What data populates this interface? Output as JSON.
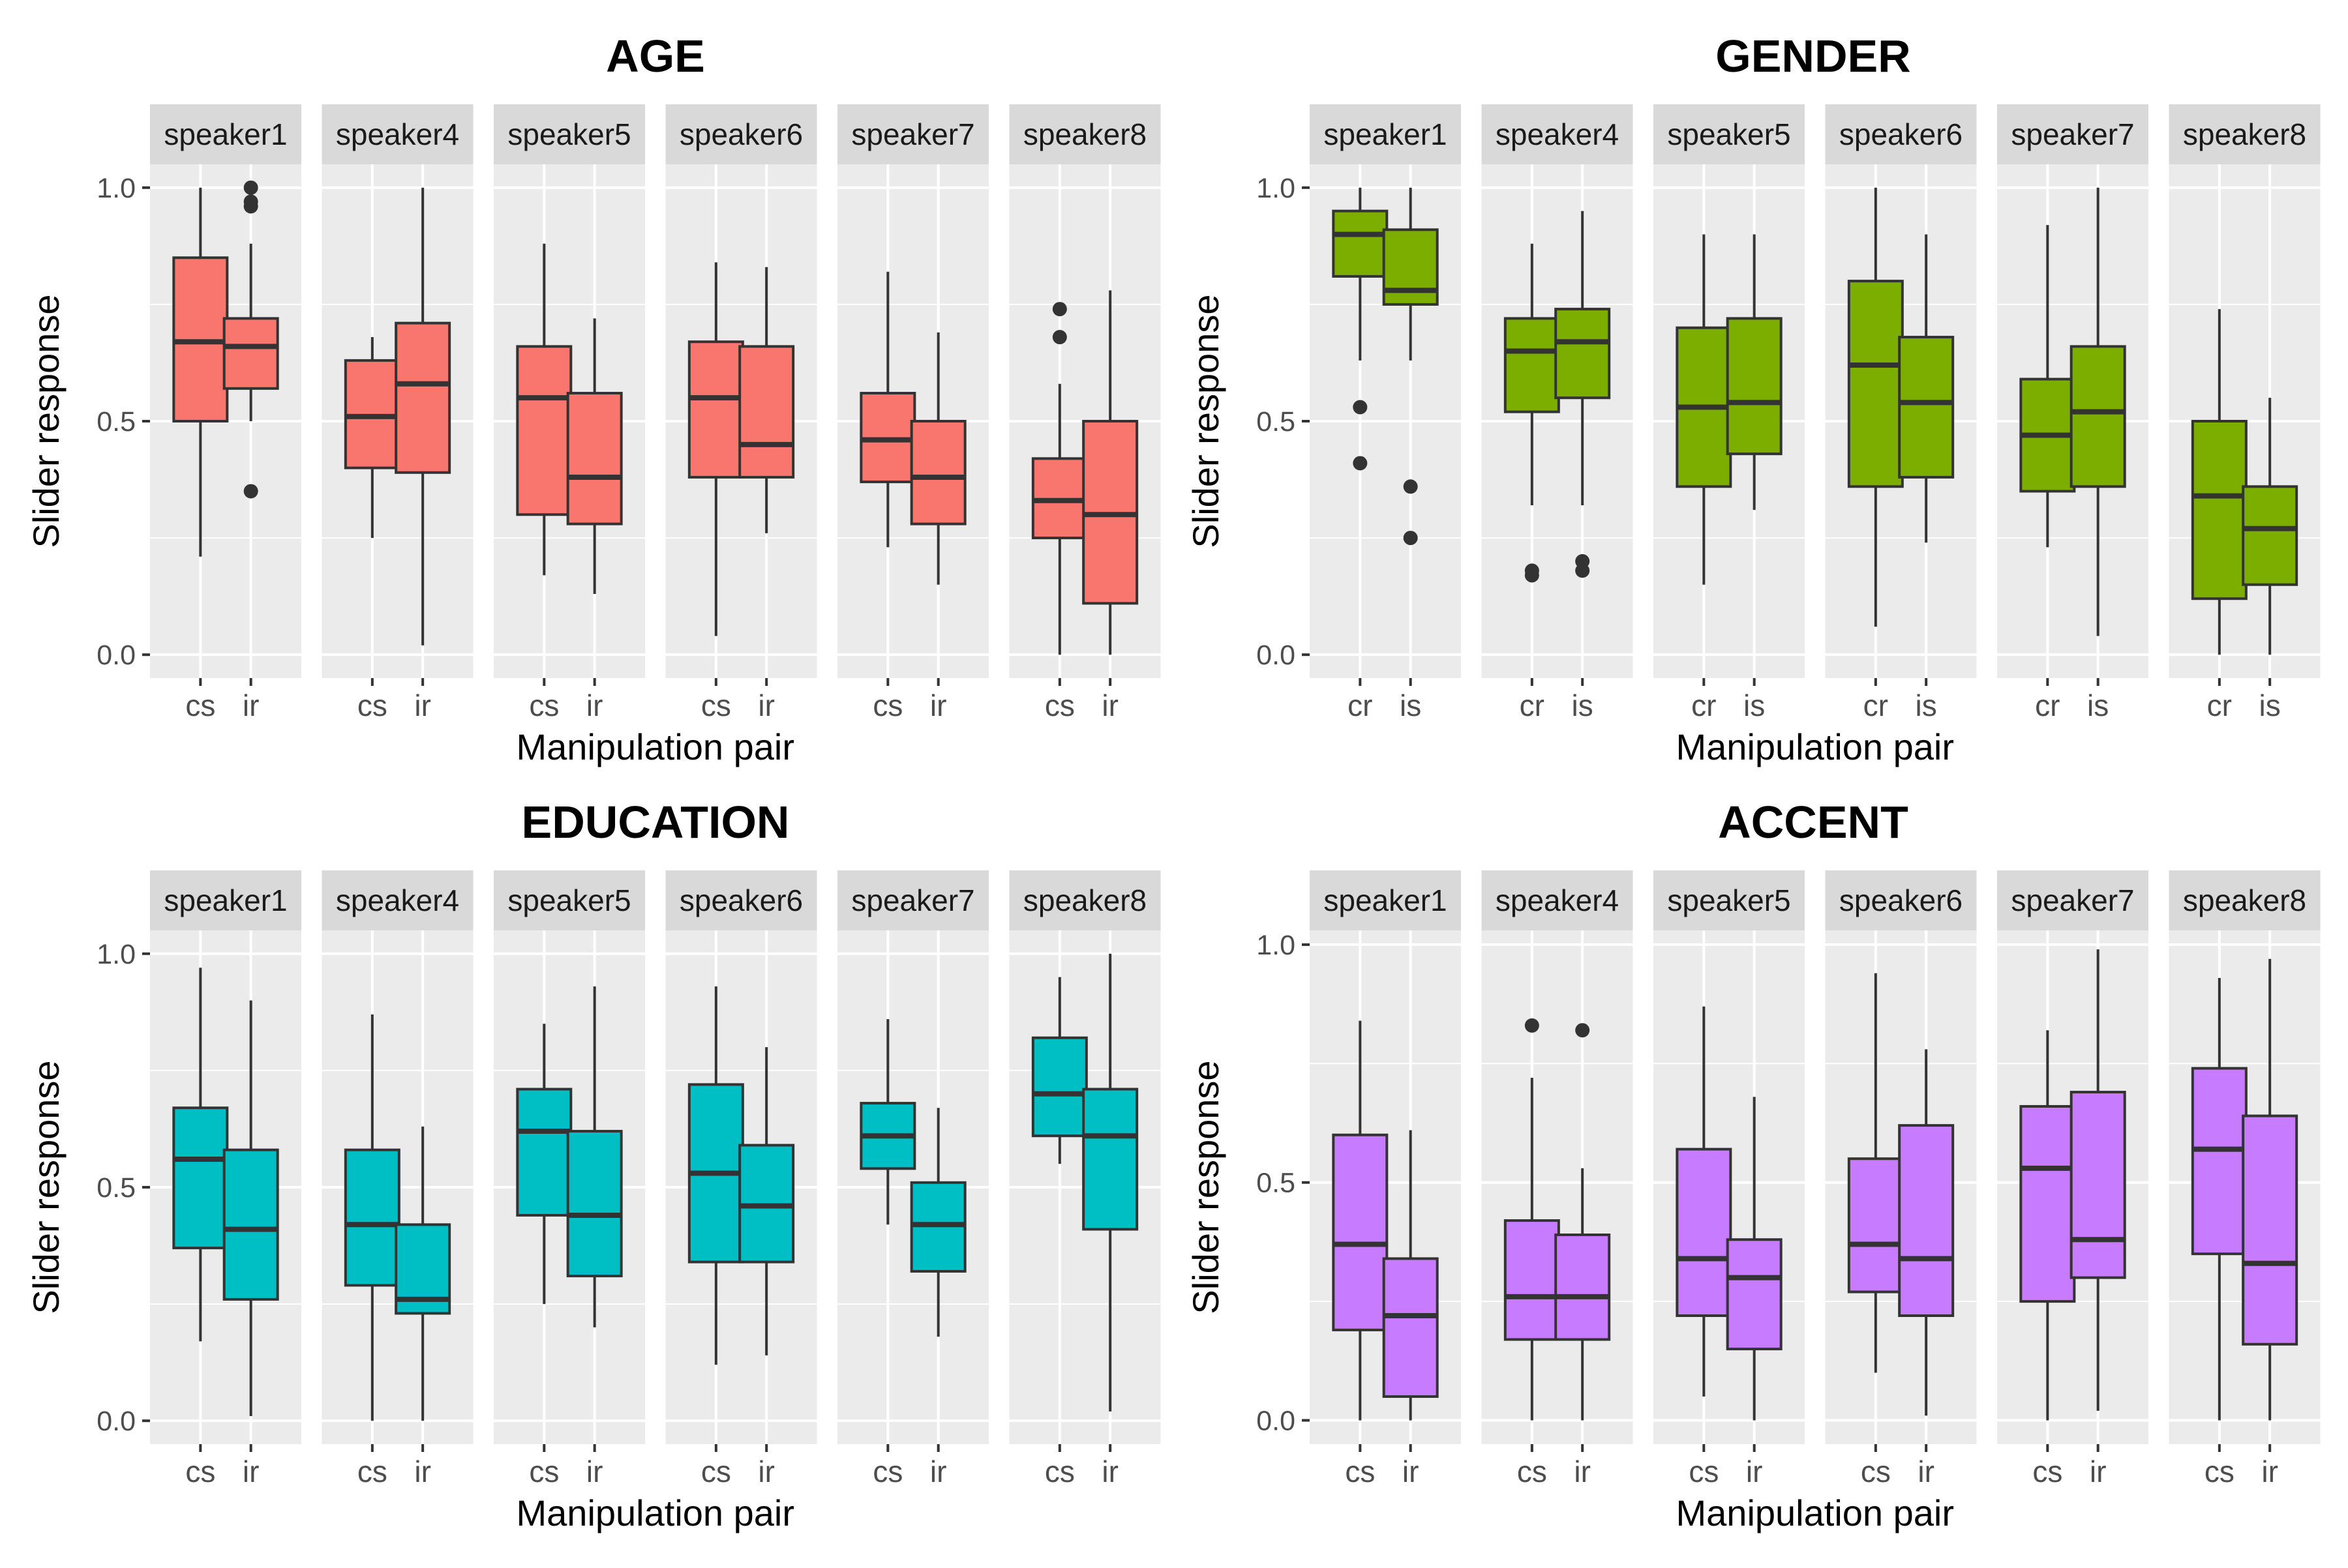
{
  "chart_data": [
    {
      "type": "boxplot",
      "title": "AGE",
      "xlabel": "Manipulation pair",
      "ylabel": "Slider response",
      "ylim": [
        -0.05,
        1.05
      ],
      "yticks": [
        0.0,
        0.5,
        1.0
      ],
      "ytick_labels": [
        "0.0",
        "0.5",
        "1.0"
      ],
      "color": "#F8766D",
      "categories": [
        "cs",
        "ir"
      ],
      "facets": [
        {
          "label": "speaker1",
          "boxes": [
            {
              "x": "cs",
              "min": 0.21,
              "q1": 0.5,
              "median": 0.67,
              "q3": 0.85,
              "max": 1.0,
              "outliers": []
            },
            {
              "x": "ir",
              "min": 0.5,
              "q1": 0.57,
              "median": 0.66,
              "q3": 0.72,
              "max": 0.88,
              "outliers": [
                1.0,
                0.97,
                0.96,
                0.35
              ]
            }
          ]
        },
        {
          "label": "speaker4",
          "boxes": [
            {
              "x": "cs",
              "min": 0.25,
              "q1": 0.4,
              "median": 0.51,
              "q3": 0.63,
              "max": 0.68,
              "outliers": []
            },
            {
              "x": "ir",
              "min": 0.02,
              "q1": 0.39,
              "median": 0.58,
              "q3": 0.71,
              "max": 1.0,
              "outliers": []
            }
          ]
        },
        {
          "label": "speaker5",
          "boxes": [
            {
              "x": "cs",
              "min": 0.17,
              "q1": 0.3,
              "median": 0.55,
              "q3": 0.66,
              "max": 0.88,
              "outliers": []
            },
            {
              "x": "ir",
              "min": 0.13,
              "q1": 0.28,
              "median": 0.38,
              "q3": 0.56,
              "max": 0.72,
              "outliers": []
            }
          ]
        },
        {
          "label": "speaker6",
          "boxes": [
            {
              "x": "cs",
              "min": 0.04,
              "q1": 0.38,
              "median": 0.55,
              "q3": 0.67,
              "max": 0.84,
              "outliers": []
            },
            {
              "x": "ir",
              "min": 0.26,
              "q1": 0.38,
              "median": 0.45,
              "q3": 0.66,
              "max": 0.83,
              "outliers": []
            }
          ]
        },
        {
          "label": "speaker7",
          "boxes": [
            {
              "x": "cs",
              "min": 0.23,
              "q1": 0.37,
              "median": 0.46,
              "q3": 0.56,
              "max": 0.82,
              "outliers": []
            },
            {
              "x": "ir",
              "min": 0.15,
              "q1": 0.28,
              "median": 0.38,
              "q3": 0.5,
              "max": 0.69,
              "outliers": []
            }
          ]
        },
        {
          "label": "speaker8",
          "boxes": [
            {
              "x": "cs",
              "min": 0.0,
              "q1": 0.25,
              "median": 0.33,
              "q3": 0.42,
              "max": 0.58,
              "outliers": [
                0.74,
                0.68
              ]
            },
            {
              "x": "ir",
              "min": 0.0,
              "q1": 0.11,
              "median": 0.3,
              "q3": 0.5,
              "max": 0.78,
              "outliers": []
            }
          ]
        }
      ]
    },
    {
      "type": "boxplot",
      "title": "GENDER",
      "xlabel": "Manipulation pair",
      "ylabel": "Slider response",
      "ylim": [
        -0.05,
        1.05
      ],
      "yticks": [
        0.0,
        0.5,
        1.0
      ],
      "ytick_labels": [
        "0.0",
        "0.5",
        "1.0"
      ],
      "color": "#7CAE00",
      "categories": [
        "cr",
        "is"
      ],
      "facets": [
        {
          "label": "speaker1",
          "boxes": [
            {
              "x": "cr",
              "min": 0.63,
              "q1": 0.81,
              "median": 0.9,
              "q3": 0.95,
              "max": 1.0,
              "outliers": [
                0.53,
                0.41
              ]
            },
            {
              "x": "is",
              "min": 0.63,
              "q1": 0.75,
              "median": 0.78,
              "q3": 0.91,
              "max": 1.0,
              "outliers": [
                0.36,
                0.25
              ]
            }
          ]
        },
        {
          "label": "speaker4",
          "boxes": [
            {
              "x": "cr",
              "min": 0.32,
              "q1": 0.52,
              "median": 0.65,
              "q3": 0.72,
              "max": 0.88,
              "outliers": [
                0.18,
                0.17
              ]
            },
            {
              "x": "is",
              "min": 0.32,
              "q1": 0.55,
              "median": 0.67,
              "q3": 0.74,
              "max": 0.95,
              "outliers": [
                0.2,
                0.18
              ]
            }
          ]
        },
        {
          "label": "speaker5",
          "boxes": [
            {
              "x": "cr",
              "min": 0.15,
              "q1": 0.36,
              "median": 0.53,
              "q3": 0.7,
              "max": 0.9,
              "outliers": []
            },
            {
              "x": "is",
              "min": 0.31,
              "q1": 0.43,
              "median": 0.54,
              "q3": 0.72,
              "max": 0.9,
              "outliers": []
            }
          ]
        },
        {
          "label": "speaker6",
          "boxes": [
            {
              "x": "cr",
              "min": 0.06,
              "q1": 0.36,
              "median": 0.62,
              "q3": 0.8,
              "max": 1.0,
              "outliers": []
            },
            {
              "x": "is",
              "min": 0.24,
              "q1": 0.38,
              "median": 0.54,
              "q3": 0.68,
              "max": 0.9,
              "outliers": []
            }
          ]
        },
        {
          "label": "speaker7",
          "boxes": [
            {
              "x": "cr",
              "min": 0.23,
              "q1": 0.35,
              "median": 0.47,
              "q3": 0.59,
              "max": 0.92,
              "outliers": []
            },
            {
              "x": "is",
              "min": 0.04,
              "q1": 0.36,
              "median": 0.52,
              "q3": 0.66,
              "max": 1.0,
              "outliers": []
            }
          ]
        },
        {
          "label": "speaker8",
          "boxes": [
            {
              "x": "cr",
              "min": 0.0,
              "q1": 0.12,
              "median": 0.34,
              "q3": 0.5,
              "max": 0.74,
              "outliers": []
            },
            {
              "x": "is",
              "min": 0.0,
              "q1": 0.15,
              "median": 0.27,
              "q3": 0.36,
              "max": 0.55,
              "outliers": []
            }
          ]
        }
      ]
    },
    {
      "type": "boxplot",
      "title": "EDUCATION",
      "xlabel": "Manipulation pair",
      "ylabel": "Slider response",
      "ylim": [
        -0.05,
        1.05
      ],
      "yticks": [
        0.0,
        0.5,
        1.0
      ],
      "ytick_labels": [
        "0.0",
        "0.5",
        "1.0"
      ],
      "color": "#00BFC4",
      "categories": [
        "cs",
        "ir"
      ],
      "facets": [
        {
          "label": "speaker1",
          "boxes": [
            {
              "x": "cs",
              "min": 0.17,
              "q1": 0.37,
              "median": 0.56,
              "q3": 0.67,
              "max": 0.97,
              "outliers": []
            },
            {
              "x": "ir",
              "min": 0.01,
              "q1": 0.26,
              "median": 0.41,
              "q3": 0.58,
              "max": 0.9,
              "outliers": []
            }
          ]
        },
        {
          "label": "speaker4",
          "boxes": [
            {
              "x": "cs",
              "min": 0.0,
              "q1": 0.29,
              "median": 0.42,
              "q3": 0.58,
              "max": 0.87,
              "outliers": []
            },
            {
              "x": "ir",
              "min": 0.0,
              "q1": 0.23,
              "median": 0.26,
              "q3": 0.42,
              "max": 0.63,
              "outliers": []
            }
          ]
        },
        {
          "label": "speaker5",
          "boxes": [
            {
              "x": "cs",
              "min": 0.25,
              "q1": 0.44,
              "median": 0.62,
              "q3": 0.71,
              "max": 0.85,
              "outliers": []
            },
            {
              "x": "ir",
              "min": 0.2,
              "q1": 0.31,
              "median": 0.44,
              "q3": 0.62,
              "max": 0.93,
              "outliers": []
            }
          ]
        },
        {
          "label": "speaker6",
          "boxes": [
            {
              "x": "cs",
              "min": 0.12,
              "q1": 0.34,
              "median": 0.53,
              "q3": 0.72,
              "max": 0.93,
              "outliers": []
            },
            {
              "x": "ir",
              "min": 0.14,
              "q1": 0.34,
              "median": 0.46,
              "q3": 0.59,
              "max": 0.8,
              "outliers": []
            }
          ]
        },
        {
          "label": "speaker7",
          "boxes": [
            {
              "x": "cs",
              "min": 0.42,
              "q1": 0.54,
              "median": 0.61,
              "q3": 0.68,
              "max": 0.86,
              "outliers": []
            },
            {
              "x": "ir",
              "min": 0.18,
              "q1": 0.32,
              "median": 0.42,
              "q3": 0.51,
              "max": 0.67,
              "outliers": []
            }
          ]
        },
        {
          "label": "speaker8",
          "boxes": [
            {
              "x": "cs",
              "min": 0.55,
              "q1": 0.61,
              "median": 0.7,
              "q3": 0.82,
              "max": 0.95,
              "outliers": []
            },
            {
              "x": "ir",
              "min": 0.02,
              "q1": 0.41,
              "median": 0.61,
              "q3": 0.71,
              "max": 1.0,
              "outliers": []
            }
          ]
        }
      ]
    },
    {
      "type": "boxplot",
      "title": "ACCENT",
      "xlabel": "Manipulation pair",
      "ylabel": "Slider response",
      "ylim": [
        -0.05,
        1.03
      ],
      "yticks": [
        0.0,
        0.5,
        1.0
      ],
      "ytick_labels": [
        "0.0",
        "0.5",
        "1.0"
      ],
      "color": "#C77CFF",
      "categories": [
        "cs",
        "ir"
      ],
      "facets": [
        {
          "label": "speaker1",
          "boxes": [
            {
              "x": "cs",
              "min": 0.0,
              "q1": 0.19,
              "median": 0.37,
              "q3": 0.6,
              "max": 0.84,
              "outliers": []
            },
            {
              "x": "ir",
              "min": 0.0,
              "q1": 0.05,
              "median": 0.22,
              "q3": 0.34,
              "max": 0.61,
              "outliers": []
            }
          ]
        },
        {
          "label": "speaker4",
          "boxes": [
            {
              "x": "cs",
              "min": 0.0,
              "q1": 0.17,
              "median": 0.26,
              "q3": 0.42,
              "max": 0.72,
              "outliers": [
                0.83
              ]
            },
            {
              "x": "ir",
              "min": 0.0,
              "q1": 0.17,
              "median": 0.26,
              "q3": 0.39,
              "max": 0.53,
              "outliers": [
                0.82
              ]
            }
          ]
        },
        {
          "label": "speaker5",
          "boxes": [
            {
              "x": "cs",
              "min": 0.05,
              "q1": 0.22,
              "median": 0.34,
              "q3": 0.57,
              "max": 0.87,
              "outliers": []
            },
            {
              "x": "ir",
              "min": 0.0,
              "q1": 0.15,
              "median": 0.3,
              "q3": 0.38,
              "max": 0.68,
              "outliers": []
            }
          ]
        },
        {
          "label": "speaker6",
          "boxes": [
            {
              "x": "cs",
              "min": 0.1,
              "q1": 0.27,
              "median": 0.37,
              "q3": 0.55,
              "max": 0.94,
              "outliers": []
            },
            {
              "x": "ir",
              "min": 0.01,
              "q1": 0.22,
              "median": 0.34,
              "q3": 0.62,
              "max": 0.78,
              "outliers": []
            }
          ]
        },
        {
          "label": "speaker7",
          "boxes": [
            {
              "x": "cs",
              "min": 0.0,
              "q1": 0.25,
              "median": 0.53,
              "q3": 0.66,
              "max": 0.82,
              "outliers": []
            },
            {
              "x": "ir",
              "min": 0.02,
              "q1": 0.3,
              "median": 0.38,
              "q3": 0.69,
              "max": 0.99,
              "outliers": []
            }
          ]
        },
        {
          "label": "speaker8",
          "boxes": [
            {
              "x": "cs",
              "min": 0.0,
              "q1": 0.35,
              "median": 0.57,
              "q3": 0.74,
              "max": 0.93,
              "outliers": []
            },
            {
              "x": "ir",
              "min": 0.0,
              "q1": 0.16,
              "median": 0.33,
              "q3": 0.64,
              "max": 0.97,
              "outliers": []
            }
          ]
        }
      ]
    }
  ]
}
